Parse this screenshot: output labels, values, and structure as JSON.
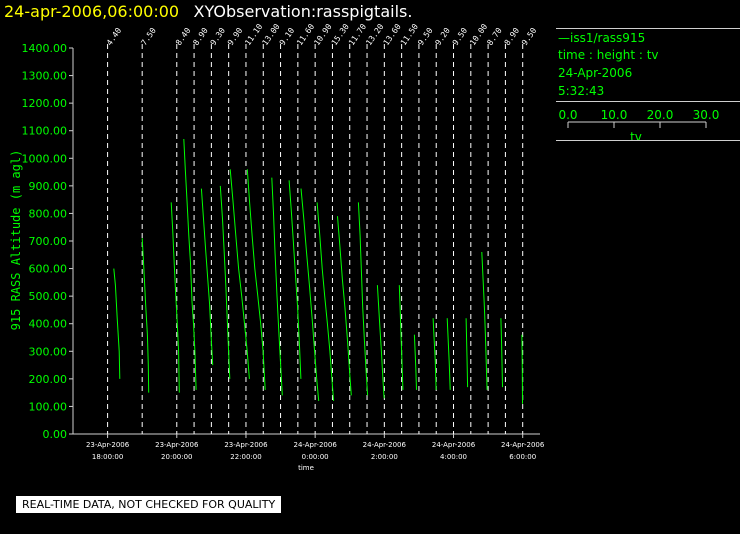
{
  "header": {
    "date_time": "24-apr-2006,06:00:00",
    "title": "XYObservation:rasspigtails."
  },
  "legend": {
    "series_label": "—iss1/rass915",
    "plot_desc": "time : height : tv",
    "date": "24-Apr-2006",
    "time": "5:32:43",
    "scale_ticks": [
      "0.0",
      "10.0",
      "20.0",
      "30.0"
    ],
    "scale_label": "tv"
  },
  "footer": {
    "notice": "REAL-TIME DATA, NOT CHECKED FOR QUALITY"
  },
  "colors": {
    "series": "#00ff00",
    "axes": "#cfcfcf",
    "header_date": "#ffff00",
    "title": "#ffffff"
  },
  "chart_data": {
    "type": "line",
    "title": "",
    "xlabel": "time",
    "ylabel": "915 RASS Altitude (m agl)",
    "ylim": [
      0,
      1400
    ],
    "yticks": [
      "0.00",
      "100.00",
      "200.00",
      "300.00",
      "400.00",
      "500.00",
      "600.00",
      "700.00",
      "800.00",
      "900.00",
      "1000.00",
      "1100.00",
      "1200.00",
      "1300.00",
      "1400.00"
    ],
    "xlim": [
      "23-Apr-2006 17:00",
      "24-Apr-2006 06:30"
    ],
    "xticks": [
      {
        "date": "23-Apr-2006",
        "time": "18:00:00",
        "at": "23-Apr-2006 18:00"
      },
      {
        "date": "23-Apr-2006",
        "time": "20:00:00",
        "at": "23-Apr-2006 20:00"
      },
      {
        "date": "23-Apr-2006",
        "time": "22:00:00",
        "at": "23-Apr-2006 22:00"
      },
      {
        "date": "24-Apr-2006",
        "time": "0:00:00",
        "at": "24-Apr-2006 00:00"
      },
      {
        "date": "24-Apr-2006",
        "time": "2:00:00",
        "at": "24-Apr-2006 02:00"
      },
      {
        "date": "24-Apr-2006",
        "time": "4:00:00",
        "at": "24-Apr-2006 04:00"
      },
      {
        "date": "24-Apr-2006",
        "time": "6:00:00",
        "at": "24-Apr-2006 06:00"
      }
    ],
    "grid": false,
    "legend_position": "right",
    "series": [
      {
        "time": "23-Apr-2006 18:00",
        "label": "4.40",
        "points": [
          [
            6.2,
            600
          ],
          [
            7.8,
            540
          ],
          [
            9.6,
            420
          ],
          [
            11.6,
            300
          ],
          [
            12.2,
            200
          ]
        ]
      },
      {
        "time": "23-Apr-2006 19:00",
        "label": "7.50",
        "points": [
          [
            0.0,
            710
          ],
          [
            1.5,
            610
          ],
          [
            3.6,
            460
          ],
          [
            5.2,
            360
          ],
          [
            6.1,
            250
          ],
          [
            6.5,
            150
          ]
        ]
      },
      {
        "time": "23-Apr-2006 20:00",
        "label": "8.40",
        "points": [
          [
            -5.6,
            840
          ],
          [
            -4.1,
            740
          ],
          [
            -2.6,
            620
          ],
          [
            -1.0,
            500
          ],
          [
            0.5,
            400
          ],
          [
            1.8,
            300
          ],
          [
            2.5,
            150
          ]
        ]
      },
      {
        "time": "23-Apr-2006 20:30",
        "label": "8.90",
        "points": [
          [
            -10.3,
            1070
          ],
          [
            -8.8,
            960
          ],
          [
            -7.0,
            840
          ],
          [
            -5.3,
            720
          ],
          [
            -3.6,
            620
          ],
          [
            -2.1,
            480
          ],
          [
            -0.6,
            400
          ],
          [
            0.8,
            300
          ],
          [
            2.0,
            160
          ]
        ]
      },
      {
        "time": "23-Apr-2006 21:00",
        "label": "9.30",
        "points": [
          [
            -10.0,
            890
          ],
          [
            -7.9,
            780
          ],
          [
            -5.6,
            660
          ],
          [
            -3.6,
            560
          ],
          [
            -1.8,
            470
          ],
          [
            -0.2,
            350
          ],
          [
            1.3,
            250
          ]
        ]
      },
      {
        "time": "23-Apr-2006 21:30",
        "label": "9.90",
        "points": [
          [
            -8.4,
            900
          ],
          [
            -6.2,
            780
          ],
          [
            -4.5,
            660
          ],
          [
            -2.9,
            540
          ],
          [
            -1.5,
            420
          ],
          [
            -0.1,
            300
          ],
          [
            1.1,
            200
          ]
        ]
      },
      {
        "time": "23-Apr-2006 22:00",
        "label": "11.10",
        "points": [
          [
            -15.8,
            960
          ],
          [
            -12.9,
            840
          ],
          [
            -10.2,
            720
          ],
          [
            -7.4,
            600
          ],
          [
            -4.3,
            500
          ],
          [
            -1.5,
            400
          ],
          [
            1.2,
            300
          ],
          [
            3.4,
            200
          ]
        ]
      },
      {
        "time": "23-Apr-2006 22:30",
        "label": "13.00",
        "points": [
          [
            -16.0,
            960
          ],
          [
            -13.7,
            840
          ],
          [
            -11.2,
            720
          ],
          [
            -8.5,
            600
          ],
          [
            -5.5,
            500
          ],
          [
            -2.6,
            400
          ],
          [
            -0.2,
            300
          ],
          [
            1.9,
            160
          ]
        ]
      },
      {
        "time": "23-Apr-2006 23:00",
        "label": "9.10",
        "points": [
          [
            -8.8,
            930
          ],
          [
            -7.1,
            800
          ],
          [
            -5.6,
            660
          ],
          [
            -3.6,
            500
          ],
          [
            -1.9,
            380
          ],
          [
            -0.1,
            260
          ],
          [
            1.7,
            140
          ]
        ]
      },
      {
        "time": "23-Apr-2006 23:30",
        "label": "11.60",
        "points": [
          [
            -8.8,
            920
          ],
          [
            -6.8,
            820
          ],
          [
            -4.6,
            700
          ],
          [
            -2.5,
            580
          ],
          [
            -0.3,
            460
          ],
          [
            1.6,
            320
          ],
          [
            3.0,
            200
          ]
        ]
      },
      {
        "time": "24-Apr-2006 00:00",
        "label": "10.90",
        "points": [
          [
            -14.1,
            890
          ],
          [
            -11.3,
            780
          ],
          [
            -8.6,
            660
          ],
          [
            -5.7,
            540
          ],
          [
            -3.0,
            420
          ],
          [
            -0.5,
            300
          ],
          [
            1.6,
            200
          ],
          [
            3.6,
            120
          ]
        ]
      },
      {
        "time": "24-Apr-2006 00:30",
        "label": "15.30",
        "points": [
          [
            -15.3,
            840
          ],
          [
            -12.6,
            720
          ],
          [
            -10.2,
            600
          ],
          [
            -7.7,
            500
          ],
          [
            -5.0,
            400
          ],
          [
            -2.5,
            300
          ],
          [
            -0.5,
            200
          ],
          [
            1.2,
            120
          ]
        ]
      },
      {
        "time": "24-Apr-2006 01:00",
        "label": "11.70",
        "points": [
          [
            -12.2,
            790
          ],
          [
            -9.8,
            680
          ],
          [
            -7.3,
            560
          ],
          [
            -4.8,
            460
          ],
          [
            -2.2,
            340
          ],
          [
            0.0,
            220
          ],
          [
            1.6,
            140
          ]
        ]
      },
      {
        "time": "24-Apr-2006 01:30",
        "label": "13.20",
        "points": [
          [
            -8.6,
            840
          ],
          [
            -6.9,
            720
          ],
          [
            -5.5,
            580
          ],
          [
            -4.3,
            460
          ],
          [
            -2.6,
            340
          ],
          [
            -0.8,
            220
          ],
          [
            0.6,
            140
          ]
        ]
      },
      {
        "time": "24-Apr-2006 02:00",
        "label": "13.60",
        "points": [
          [
            -6.9,
            540
          ],
          [
            -5.6,
            460
          ],
          [
            -4.3,
            380
          ],
          [
            -2.9,
            300
          ],
          [
            -1.4,
            200
          ],
          [
            -0.2,
            130
          ]
        ]
      },
      {
        "time": "24-Apr-2006 02:30",
        "label": "11.50",
        "points": [
          [
            -2.3,
            540
          ],
          [
            -1.5,
            460
          ],
          [
            -0.6,
            360
          ],
          [
            0.4,
            260
          ],
          [
            1.3,
            160
          ]
        ]
      },
      {
        "time": "24-Apr-2006 03:00",
        "label": "9.50",
        "points": [
          [
            -4.5,
            360
          ],
          [
            -3.8,
            300
          ],
          [
            -3.1,
            240
          ],
          [
            -2.4,
            160
          ]
        ]
      },
      {
        "time": "24-Apr-2006 03:30",
        "label": "9.20",
        "points": [
          [
            -3.1,
            420
          ],
          [
            -2.0,
            340
          ],
          [
            -1.0,
            270
          ],
          [
            -0.1,
            160
          ]
        ]
      },
      {
        "time": "24-Apr-2006 04:00",
        "label": "9.50",
        "points": [
          [
            -6.3,
            420
          ],
          [
            -5.3,
            340
          ],
          [
            -4.3,
            260
          ],
          [
            -3.3,
            160
          ]
        ]
      },
      {
        "time": "24-Apr-2006 04:30",
        "label": "10.00",
        "points": [
          [
            -4.7,
            420
          ],
          [
            -4.2,
            340
          ],
          [
            -3.7,
            260
          ],
          [
            -3.2,
            170
          ]
        ]
      },
      {
        "time": "24-Apr-2006 05:00",
        "label": "8.70",
        "points": [
          [
            -6.3,
            660
          ],
          [
            -5.0,
            560
          ],
          [
            -3.7,
            460
          ],
          [
            -2.7,
            360
          ],
          [
            -1.7,
            240
          ],
          [
            -1.0,
            160
          ]
        ]
      },
      {
        "time": "24-Apr-2006 05:30",
        "label": "8.90",
        "points": [
          [
            -4.5,
            420
          ],
          [
            -3.9,
            340
          ],
          [
            -3.4,
            260
          ],
          [
            -2.9,
            170
          ]
        ]
      },
      {
        "time": "24-Apr-2006 06:00",
        "label": "9.50",
        "points": [
          [
            -0.8,
            360
          ],
          [
            -0.6,
            300
          ],
          [
            -0.4,
            230
          ],
          [
            -0.2,
            110
          ]
        ]
      }
    ]
  }
}
